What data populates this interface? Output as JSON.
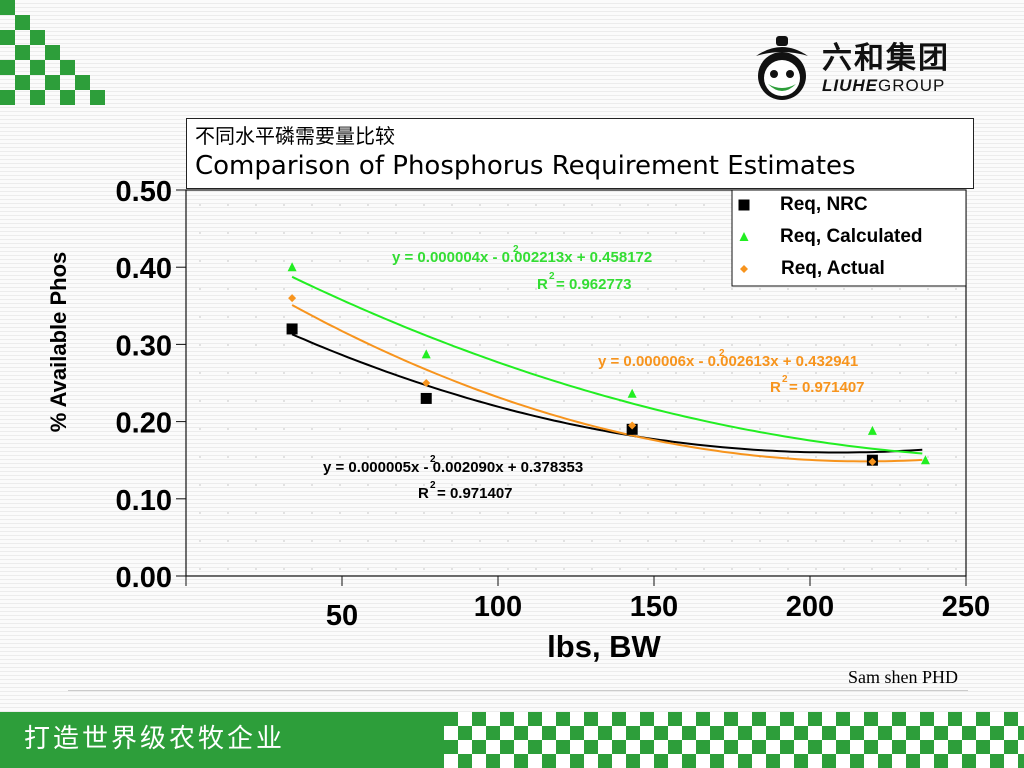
{
  "header": {
    "brand_cn": "六和集团",
    "brand_en_bold": "LIUHE",
    "brand_en_rest": "GROUP"
  },
  "footer": {
    "slogan": "打造世界级农牧企业",
    "author": "Sam shen PHD"
  },
  "colors": {
    "brand_green": "#2d9e3a",
    "nrc": "#000000",
    "calculated": "#22ee22",
    "actual": "#f7941d"
  },
  "chart_data": {
    "type": "scatter",
    "title_cn": "不同水平磷需要量比较",
    "title": "Comparison of Phosphorus Requirement Estimates",
    "xlabel": "lbs, BW",
    "ylabel": "% Available Phos",
    "xlim": [
      0,
      250
    ],
    "ylim": [
      0,
      0.5
    ],
    "x_ticks": [
      {
        "value": 50,
        "label": "50"
      },
      {
        "value": 100,
        "label": "100"
      },
      {
        "value": 150,
        "label": "150"
      },
      {
        "value": 200,
        "label": "200"
      },
      {
        "value": 250,
        "label": "250"
      }
    ],
    "y_ticks": [
      {
        "value": 0.0,
        "label": "0.00"
      },
      {
        "value": 0.1,
        "label": "0.10"
      },
      {
        "value": 0.2,
        "label": "0.20"
      },
      {
        "value": 0.3,
        "label": "0.30"
      },
      {
        "value": 0.4,
        "label": "0.40"
      },
      {
        "value": 0.5,
        "label": "0.50"
      }
    ],
    "legend_position": "top-right",
    "series": [
      {
        "name": "Req, NRC",
        "color": "#000000",
        "marker": "square",
        "points": [
          {
            "x": 34,
            "y": 0.32
          },
          {
            "x": 77,
            "y": 0.23
          },
          {
            "x": 143,
            "y": 0.19
          },
          {
            "x": 220,
            "y": 0.15
          }
        ],
        "trend": {
          "a": 5e-06,
          "b": -0.00209,
          "c": 0.378353,
          "x_from": 34,
          "x_to": 237
        },
        "equation": "y = 0.000005x  - 0.002090x + 0.378353",
        "r2_label": "R",
        "r2_value": " = 0.971407"
      },
      {
        "name": "Req, Calculated",
        "color": "#22ee22",
        "marker": "triangle",
        "points": [
          {
            "x": 34,
            "y": 0.4
          },
          {
            "x": 77,
            "y": 0.287
          },
          {
            "x": 143,
            "y": 0.236
          },
          {
            "x": 220,
            "y": 0.188
          },
          {
            "x": 237,
            "y": 0.15
          }
        ],
        "trend": {
          "a": 4e-06,
          "b": -0.002213,
          "c": 0.458172,
          "x_from": 34,
          "x_to": 237
        },
        "equation": "y = 0.000004x  - 0.002213x + 0.458172",
        "r2_label": "R",
        "r2_value": " = 0.962773"
      },
      {
        "name": "Req, Actual",
        "color": "#f7941d",
        "marker": "diamond",
        "points": [
          {
            "x": 34,
            "y": 0.36
          },
          {
            "x": 77,
            "y": 0.25
          },
          {
            "x": 143,
            "y": 0.195
          },
          {
            "x": 220,
            "y": 0.148
          }
        ],
        "trend": {
          "a": 6e-06,
          "b": -0.002613,
          "c": 0.432941,
          "x_from": 34,
          "x_to": 237
        },
        "equation": "y = 0.000006x  - 0.002613x + 0.432941",
        "r2_label": "R",
        "r2_value": " = 0.971407"
      }
    ]
  }
}
